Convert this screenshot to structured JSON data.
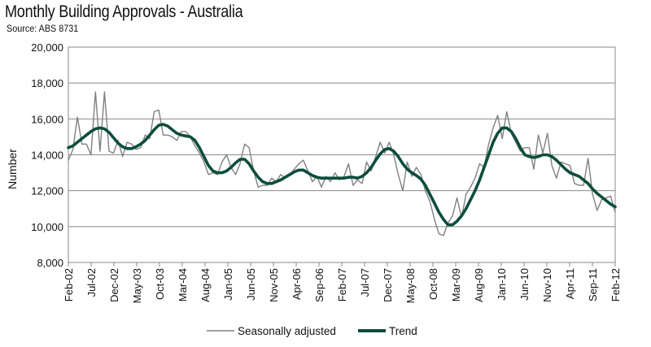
{
  "page": {
    "title": "Monthly Building Approvals - Australia",
    "subtitle": "Source: ABS 8731"
  },
  "chart_data": {
    "type": "line",
    "title": "Monthly Building Approvals - Australia",
    "subtitle": "Source: ABS 8731",
    "xlabel": "",
    "ylabel": "Number",
    "ylim": [
      8000,
      20000
    ],
    "yticks": [
      8000,
      10000,
      12000,
      14000,
      16000,
      18000,
      20000
    ],
    "ytick_labels": [
      "8,000",
      "10,000",
      "12,000",
      "14,000",
      "16,000",
      "18,000",
      "20,000"
    ],
    "grid": true,
    "legend_position": "bottom",
    "xtick_labels": [
      "Feb-02",
      "Jul-02",
      "Dec-02",
      "May-03",
      "Oct-03",
      "Mar-04",
      "Aug-04",
      "Jan-05",
      "Jun-05",
      "Nov-05",
      "Apr-06",
      "Sep-06",
      "Feb-07",
      "Jul-07",
      "Dec-07",
      "May-08",
      "Oct-08",
      "Mar-09",
      "Aug-09",
      "Jan-10",
      "Jun-10",
      "Nov-10",
      "Apr-11",
      "Sep-11",
      "Feb-12"
    ],
    "series": [
      {
        "name": "Seasonally adjusted",
        "color": "#808080",
        "values": [
          13700,
          14300,
          16100,
          14600,
          14600,
          14000,
          17500,
          14200,
          17500,
          14200,
          14100,
          14800,
          13900,
          14700,
          14600,
          14300,
          14400,
          15100,
          14900,
          16400,
          16500,
          15100,
          15100,
          15000,
          14800,
          15300,
          15300,
          15000,
          14500,
          14100,
          13600,
          12900,
          13000,
          12900,
          13600,
          14000,
          13300,
          12900,
          13500,
          14600,
          14400,
          13100,
          12200,
          12300,
          12300,
          12700,
          12500,
          12900,
          12700,
          12900,
          13200,
          13500,
          13700,
          13100,
          12500,
          12800,
          12200,
          12800,
          12500,
          13000,
          12600,
          12800,
          13500,
          12300,
          12600,
          12400,
          13600,
          13100,
          13900,
          14700,
          14100,
          14700,
          14000,
          12900,
          12000,
          13600,
          12800,
          13300,
          12900,
          12000,
          11400,
          10400,
          9600,
          9500,
          10200,
          10600,
          11600,
          10500,
          11800,
          12200,
          12700,
          13500,
          13300,
          14600,
          15500,
          16200,
          14900,
          16400,
          15200,
          14700,
          14200,
          14400,
          14400,
          13200,
          15100,
          14100,
          15200,
          13400,
          12700,
          13600,
          13500,
          13400,
          12400,
          12300,
          12300,
          13800,
          11800,
          10900,
          11500,
          11600,
          11700,
          10800
        ]
      },
      {
        "name": "Trend",
        "color": "#0d4d3c",
        "values": [
          14400,
          14500,
          14700,
          14900,
          15100,
          15300,
          15450,
          15500,
          15450,
          15250,
          14950,
          14650,
          14450,
          14350,
          14350,
          14450,
          14600,
          14800,
          15100,
          15400,
          15650,
          15700,
          15600,
          15400,
          15200,
          15100,
          15050,
          15000,
          14800,
          14400,
          13900,
          13400,
          13100,
          13000,
          13000,
          13100,
          13300,
          13550,
          13750,
          13750,
          13500,
          13100,
          12750,
          12500,
          12400,
          12400,
          12500,
          12600,
          12750,
          12900,
          13050,
          13150,
          13150,
          13000,
          12850,
          12750,
          12700,
          12700,
          12700,
          12700,
          12700,
          12700,
          12750,
          12750,
          12700,
          12800,
          13000,
          13300,
          13700,
          14050,
          14300,
          14350,
          14200,
          13900,
          13500,
          13200,
          13000,
          12850,
          12650,
          12300,
          11800,
          11300,
          10800,
          10400,
          10100,
          10100,
          10300,
          10600,
          11000,
          11500,
          12000,
          12600,
          13300,
          14000,
          14700,
          15200,
          15500,
          15500,
          15300,
          14900,
          14400,
          14000,
          13900,
          13850,
          13900,
          14000,
          14000,
          13900,
          13700,
          13450,
          13200,
          13000,
          12900,
          12800,
          12600,
          12400,
          12100,
          11850,
          11650,
          11450,
          11250,
          11100
        ]
      }
    ]
  }
}
